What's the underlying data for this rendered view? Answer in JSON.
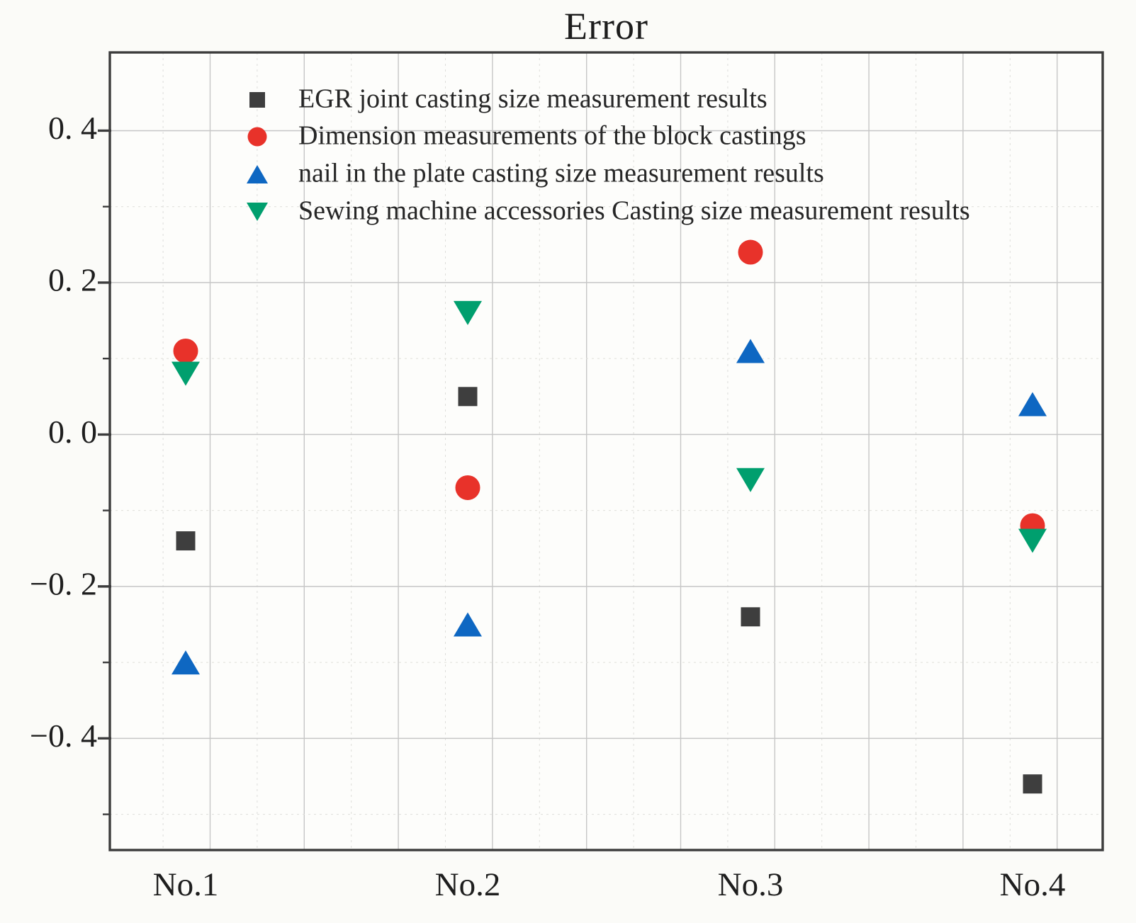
{
  "chart_data": {
    "type": "scatter",
    "title": "Error",
    "categories": [
      "No.1",
      "No.2",
      "No.3",
      "No.4"
    ],
    "series": [
      {
        "name": "EGR joint casting size measurement results",
        "marker": "square",
        "color": "#3e3e3e",
        "values": [
          -0.14,
          0.05,
          -0.24,
          -0.46
        ]
      },
      {
        "name": "Dimension measurements of the block castings",
        "marker": "circle",
        "color": "#e8322a",
        "values": [
          0.11,
          -0.07,
          0.24,
          -0.12
        ]
      },
      {
        "name": "nail in the plate casting size measurement results",
        "marker": "triangle-up",
        "color": "#0e67c2",
        "values": [
          -0.3,
          -0.25,
          0.11,
          0.04
        ]
      },
      {
        "name": "Sewing machine accessories Casting size measurement results",
        "marker": "triangle-down",
        "color": "#009f6e",
        "values": [
          0.08,
          0.16,
          -0.06,
          -0.14
        ]
      }
    ],
    "xlabel": "",
    "ylabel": "",
    "ylim": [
      -0.547,
      0.503
    ],
    "y_major_ticks": {
      "values": [
        0.4,
        0.2,
        0.0,
        -0.2,
        -0.4
      ],
      "labels": [
        "0. 4",
        "0. 2",
        "0. 0",
        "−0. 2",
        "−0. 4"
      ]
    },
    "y_minor_ticks": [
      0.3,
      0.1,
      -0.1,
      -0.3,
      -0.5
    ],
    "grid": "major solid + minor dotted, horizontal and vertical",
    "legend_position": "upper-left-inside"
  },
  "styles": {
    "axis_color": "#3c3c3c",
    "major_grid_color": "#c6c6c6",
    "minor_grid_color": "#dededa",
    "text_color": "#1e1e1e",
    "plot_background": "#fdfdfb"
  }
}
